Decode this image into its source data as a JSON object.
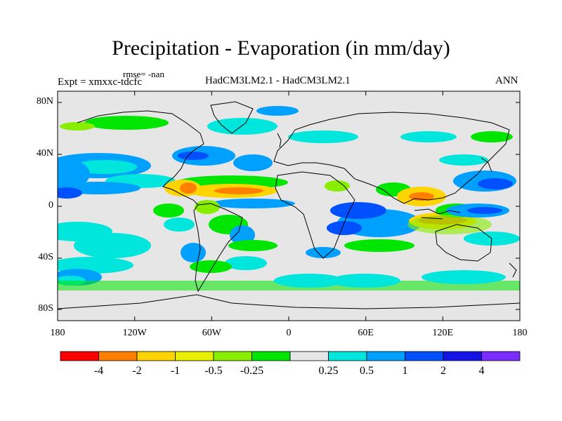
{
  "title": "Precipitation - Evaporation (in mm/day)",
  "rmse": "rmse= -nan",
  "expt": "Expt = xmxxc-tdcfc",
  "center_label": "HadCM3LM2.1 - HadCM3LM2.1",
  "season": "ANN",
  "lat_labels": [
    "80N",
    "40N",
    "0",
    "40S",
    "80S"
  ],
  "lon_labels": [
    "180",
    "120W",
    "60W",
    "0",
    "60E",
    "120E",
    "180"
  ],
  "colorbar": {
    "colors": [
      "#ff0000",
      "#ff8000",
      "#ffd400",
      "#e8f000",
      "#88ee00",
      "#00e600",
      "#e6e6e6",
      "#00e6dc",
      "#00a0ff",
      "#0050ff",
      "#1414e6",
      "#7a2cff"
    ],
    "labels": [
      "-4",
      "-2",
      "-1",
      "-0.5",
      "-0.25",
      "0.25",
      "0.5",
      "1",
      "2",
      "4"
    ]
  },
  "map_colors": {
    "land": "#e6e6e6",
    "coast": "#000000"
  }
}
